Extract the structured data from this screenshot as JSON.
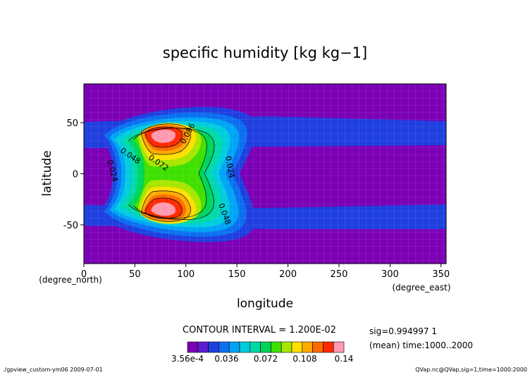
{
  "chart_data": {
    "type": "heatmap",
    "title": "specific humidity [kg kg−1]",
    "xlabel": "longitude",
    "ylabel": "latitude",
    "x_unit_label": "(degree_east)",
    "y_unit_label": "(degree_north)",
    "xlim": [
      0,
      355
    ],
    "ylim": [
      -88,
      88
    ],
    "x_ticks": [
      0,
      50,
      100,
      150,
      200,
      250,
      300,
      350
    ],
    "y_ticks": [
      50,
      0,
      -50
    ],
    "contour_interval_text": "CONTOUR INTERVAL = 1.200E-02",
    "contour_labels": [
      "0.096",
      "0.048",
      "0.072",
      "0.024",
      "0.024",
      "0.048"
    ],
    "colorbar": {
      "tick_labels": [
        "3.56e-4",
        "0.036",
        "0.072",
        "0.108",
        "0.14"
      ],
      "colors": [
        "#7b00b5",
        "#5a1fd0",
        "#1f3fe0",
        "#0b6ff0",
        "#00a3f5",
        "#00ccdd",
        "#00d9a6",
        "#00d45a",
        "#3fe000",
        "#a8e600",
        "#ffe000",
        "#ffaa00",
        "#ff6a00",
        "#ff2a00",
        "#ff9ab0"
      ]
    },
    "info_right": [
      "sig=0.994997 1",
      "(mean) time:1000..2000"
    ],
    "footer_left": "./gpview_custom-ym06  2009-07-01",
    "footer_right": "QVap.nc@QVap,sig=1,time=1000:2000"
  }
}
